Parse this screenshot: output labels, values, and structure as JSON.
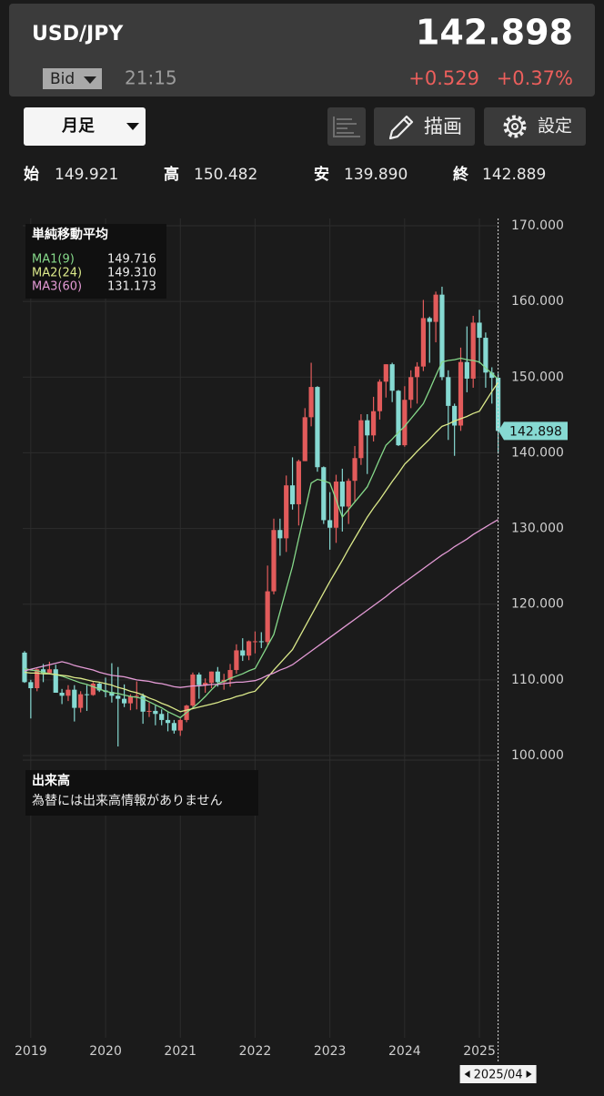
{
  "header": {
    "symbol": "USD/JPY",
    "price": "142.898",
    "bid": "Bid",
    "time": "21:15",
    "change": "+0.529",
    "change_pct": "+0.37%"
  },
  "toolbar": {
    "period": "月足",
    "draw": "描画",
    "settings": "設定"
  },
  "ohlc_row": [
    {
      "label": "始",
      "value": "149.921"
    },
    {
      "label": "高",
      "value": "150.482"
    },
    {
      "label": "安",
      "value": "139.890"
    },
    {
      "label": "終",
      "value": "142.889"
    }
  ],
  "chart_data": {
    "type": "candlestick",
    "legend_title": "単純移動平均",
    "volume_title": "出来高",
    "volume_note": "為替には出来高情報がありません",
    "categories": [
      "2018/12",
      "2019/01",
      "2019/02",
      "2019/03",
      "2019/04",
      "2019/05",
      "2019/06",
      "2019/07",
      "2019/08",
      "2019/09",
      "2019/10",
      "2019/11",
      "2019/12",
      "2020/01",
      "2020/02",
      "2020/03",
      "2020/04",
      "2020/05",
      "2020/06",
      "2020/07",
      "2020/08",
      "2020/09",
      "2020/10",
      "2020/11",
      "2020/12",
      "2021/01",
      "2021/02",
      "2021/03",
      "2021/04",
      "2021/05",
      "2021/06",
      "2021/07",
      "2021/08",
      "2021/09",
      "2021/10",
      "2021/11",
      "2021/12",
      "2022/01",
      "2022/02",
      "2022/03",
      "2022/04",
      "2022/05",
      "2022/06",
      "2022/07",
      "2022/08",
      "2022/09",
      "2022/10",
      "2022/11",
      "2022/12",
      "2023/01",
      "2023/02",
      "2023/03",
      "2023/04",
      "2023/05",
      "2023/06",
      "2023/07",
      "2023/08",
      "2023/09",
      "2023/10",
      "2023/11",
      "2023/12",
      "2024/01",
      "2024/02",
      "2024/03",
      "2024/04",
      "2024/05",
      "2024/06",
      "2024/07",
      "2024/08",
      "2024/09",
      "2024/10",
      "2024/11",
      "2024/12",
      "2025/01",
      "2025/02",
      "2025/03",
      "2025/04"
    ],
    "open": [
      113.6,
      109.7,
      108.9,
      111.4,
      110.9,
      111.4,
      108.3,
      107.9,
      108.7,
      106.3,
      108.1,
      108.0,
      109.5,
      108.6,
      108.4,
      107.9,
      107.5,
      106.9,
      107.8,
      107.9,
      105.8,
      105.9,
      105.5,
      104.7,
      104.3,
      103.3,
      104.7,
      106.6,
      110.7,
      109.3,
      109.6,
      111.1,
      109.7,
      110.0,
      111.3,
      113.9,
      113.2,
      115.1,
      115.1,
      115.0,
      121.7,
      129.8,
      128.7,
      135.7,
      133.2,
      138.9,
      144.7,
      148.7,
      138.1,
      131.1,
      130.1,
      136.2,
      132.9,
      136.3,
      139.3,
      144.3,
      142.3,
      145.5,
      149.4,
      151.7,
      148.2,
      141.0,
      147.0,
      150.0,
      151.4,
      157.8,
      157.3,
      160.9,
      150.0,
      146.2,
      143.6,
      152.0,
      149.8,
      157.2,
      155.2,
      150.6,
      149.921
    ],
    "high": [
      113.8,
      110.0,
      111.5,
      112.1,
      112.4,
      112.0,
      108.8,
      109.3,
      109.3,
      108.5,
      109.3,
      109.7,
      109.7,
      110.3,
      112.2,
      111.7,
      109.4,
      108.1,
      109.8,
      108.2,
      107.0,
      106.6,
      106.1,
      105.7,
      104.7,
      104.9,
      106.7,
      110.97,
      110.97,
      110.2,
      111.1,
      111.7,
      110.8,
      112.1,
      114.7,
      115.5,
      115.2,
      116.4,
      116.3,
      125.1,
      131.3,
      131.3,
      137.0,
      139.4,
      139.1,
      145.9,
      151.9,
      148.8,
      138.2,
      134.8,
      137.1,
      137.9,
      136.6,
      140.9,
      145.1,
      145.1,
      147.4,
      149.7,
      151.7,
      151.9,
      148.3,
      148.8,
      150.9,
      151.97,
      160.2,
      157.99,
      161.3,
      161.95,
      150.9,
      146.5,
      153.9,
      156.7,
      158.1,
      158.9,
      155.9,
      151.3,
      150.482
    ],
    "low": [
      109.6,
      104.9,
      108.5,
      109.7,
      110.8,
      108.3,
      106.8,
      107.2,
      104.5,
      105.7,
      105.9,
      107.9,
      108.4,
      107.7,
      107.0,
      101.2,
      106.4,
      105.99,
      106.1,
      104.2,
      105.1,
      104.0,
      104.0,
      103.2,
      102.9,
      102.6,
      104.4,
      106.4,
      107.5,
      108.3,
      108.9,
      109.1,
      108.7,
      109.1,
      110.8,
      112.5,
      112.6,
      113.5,
      114.2,
      114.6,
      121.3,
      126.4,
      126.9,
      132.5,
      130.4,
      138.9,
      143.5,
      137.5,
      130.6,
      127.2,
      128.1,
      129.6,
      130.6,
      133.5,
      138.4,
      137.2,
      141.5,
      144.4,
      147.3,
      146.7,
      140.9,
      140.8,
      145.9,
      146.5,
      150.8,
      151.9,
      154.6,
      149.6,
      141.7,
      139.6,
      142.9,
      148.0,
      148.6,
      151.8,
      148.6,
      146.5,
      139.89
    ],
    "close": [
      109.7,
      108.9,
      111.4,
      110.9,
      111.4,
      108.3,
      107.9,
      108.7,
      106.3,
      108.1,
      108.0,
      109.5,
      108.6,
      108.4,
      107.9,
      107.5,
      106.9,
      107.8,
      107.9,
      105.8,
      105.9,
      105.5,
      104.7,
      104.3,
      103.3,
      104.7,
      106.6,
      110.7,
      109.3,
      109.6,
      111.1,
      109.7,
      110.0,
      111.3,
      113.9,
      113.2,
      115.1,
      115.1,
      115.0,
      121.7,
      129.8,
      128.7,
      135.7,
      133.2,
      138.9,
      144.7,
      148.7,
      138.1,
      131.1,
      130.1,
      136.2,
      132.9,
      136.3,
      139.3,
      144.3,
      142.3,
      145.5,
      149.4,
      151.7,
      148.2,
      141.0,
      147.0,
      150.0,
      151.4,
      157.8,
      157.3,
      160.9,
      150.0,
      146.2,
      143.6,
      152.0,
      149.8,
      157.2,
      155.2,
      150.6,
      149.9,
      142.889
    ],
    "up_color": "#e25b5b",
    "down_color": "#86d9d2",
    "series": [
      {
        "name": "MA1(9)",
        "color": "#86d98a",
        "last_label": "149.716",
        "values": [
          111.5,
          111.3,
          111.2,
          111.0,
          110.8,
          110.7,
          110.5,
          110.2,
          109.9,
          109.6,
          109.4,
          109.1,
          108.8,
          108.5,
          108.3,
          108.2,
          108.0,
          107.8,
          107.7,
          107.5,
          107.1,
          106.7,
          106.3,
          105.8,
          105.4,
          105.0,
          105.7,
          106.3,
          107.0,
          107.8,
          108.7,
          109.5,
          109.8,
          110.2,
          110.5,
          110.8,
          111.2,
          111.5,
          113.0,
          114.5,
          116.0,
          119.0,
          122.0,
          125.0,
          128.7,
          132.3,
          136.0,
          136.5,
          136.3,
          136.0,
          133.8,
          131.5,
          132.5,
          133.5,
          134.5,
          135.5,
          137.3,
          139.2,
          141.0,
          141.8,
          142.7,
          143.5,
          144.5,
          145.5,
          146.5,
          148.3,
          150.2,
          152.0,
          152.2,
          152.3,
          152.5,
          152.3,
          152.2,
          152.0,
          151.2,
          150.5,
          149.716
        ]
      },
      {
        "name": "MA2(24)",
        "color": "#dbe98a",
        "last_label": "149.310",
        "values": [
          111.0,
          110.9,
          110.9,
          110.8,
          110.8,
          110.7,
          110.6,
          110.5,
          110.3,
          110.2,
          110.0,
          109.8,
          109.7,
          109.5,
          109.3,
          109.0,
          108.8,
          108.5,
          108.3,
          108.0,
          107.6,
          107.3,
          106.9,
          106.6,
          106.2,
          105.8,
          106.0,
          106.2,
          106.4,
          106.6,
          106.8,
          107.0,
          107.3,
          107.5,
          107.8,
          108.0,
          108.3,
          108.5,
          109.4,
          110.3,
          111.3,
          112.2,
          113.1,
          114.0,
          115.5,
          117.0,
          118.5,
          120.0,
          121.5,
          123.0,
          124.4,
          125.8,
          127.3,
          128.7,
          130.1,
          131.5,
          132.7,
          133.8,
          135.0,
          136.2,
          137.3,
          138.5,
          139.3,
          140.2,
          141.0,
          141.8,
          142.7,
          143.5,
          143.8,
          144.2,
          144.5,
          144.8,
          145.2,
          145.5,
          146.8,
          148.1,
          149.31
        ]
      },
      {
        "name": "MA3(60)",
        "color": "#e49bd6",
        "last_label": "131.173",
        "values": [
          111.2,
          111.4,
          111.6,
          111.8,
          112.0,
          112.2,
          112.4,
          112.2,
          111.9,
          111.7,
          111.5,
          111.3,
          111.0,
          110.8,
          110.6,
          110.5,
          110.4,
          110.2,
          110.0,
          109.9,
          109.8,
          109.6,
          109.5,
          109.3,
          109.1,
          109.0,
          109.1,
          109.2,
          109.2,
          109.3,
          109.4,
          109.4,
          109.5,
          109.6,
          109.7,
          109.7,
          109.8,
          109.9,
          110.2,
          110.6,
          110.9,
          111.3,
          111.6,
          112.0,
          112.6,
          113.2,
          113.8,
          114.4,
          115.0,
          115.6,
          116.2,
          116.8,
          117.4,
          118.0,
          118.6,
          119.2,
          119.8,
          120.4,
          121.0,
          121.7,
          122.3,
          122.9,
          123.5,
          124.1,
          124.7,
          125.3,
          125.9,
          126.5,
          127.0,
          127.6,
          128.1,
          128.6,
          129.2,
          129.7,
          130.2,
          130.7,
          131.173
        ]
      }
    ],
    "last_price": 142.898,
    "ylim": [
      100,
      170
    ],
    "yticks": [
      {
        "value": 100,
        "label": "100.000"
      },
      {
        "value": 110,
        "label": "110.000"
      },
      {
        "value": 120,
        "label": "120.000"
      },
      {
        "value": 130,
        "label": "130.000"
      },
      {
        "value": 140,
        "label": "140.000"
      },
      {
        "value": 150,
        "label": "150.000"
      },
      {
        "value": 160,
        "label": "160.000"
      },
      {
        "value": 170,
        "label": "170.000"
      }
    ],
    "xticks": [
      {
        "value": "2019/01",
        "label": "2019"
      },
      {
        "value": "2020/01",
        "label": "2020"
      },
      {
        "value": "2021/01",
        "label": "2021"
      },
      {
        "value": "2022/01",
        "label": "2022"
      },
      {
        "value": "2023/01",
        "label": "2023"
      },
      {
        "value": "2024/01",
        "label": "2024"
      },
      {
        "value": "2025/01",
        "label": "2025"
      }
    ],
    "grid": true
  }
}
